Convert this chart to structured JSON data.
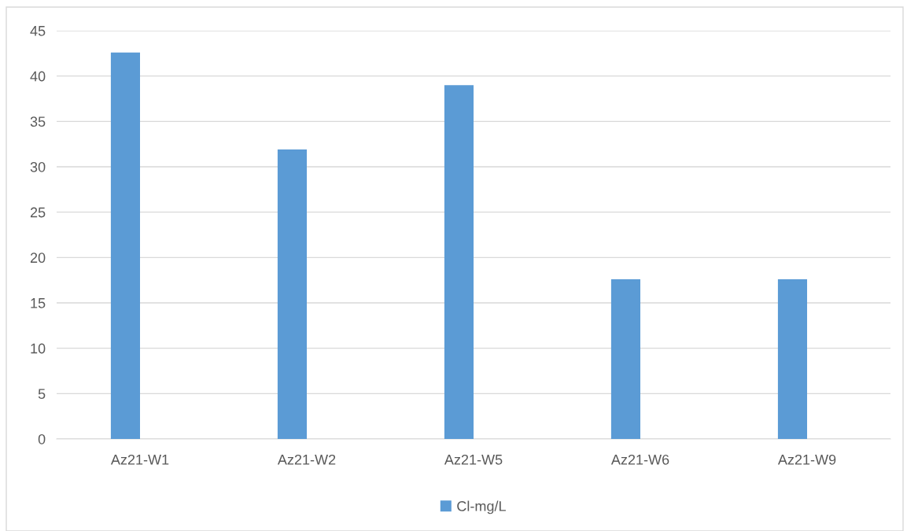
{
  "chart_data": {
    "type": "bar",
    "categories": [
      "Az21-W1",
      "Az21-W2",
      "Az21-W5",
      "Az21-W6",
      "Az21-W9"
    ],
    "series": [
      {
        "name": "Cl-mg/L",
        "color": "#5b9bd5",
        "values": [
          42.6,
          31.9,
          39.0,
          17.6,
          17.6
        ]
      }
    ],
    "ylim": [
      0,
      45
    ],
    "yticks": [
      0,
      5,
      10,
      15,
      20,
      25,
      30,
      35,
      40,
      45
    ],
    "grid": "y",
    "legend": "bottom"
  }
}
